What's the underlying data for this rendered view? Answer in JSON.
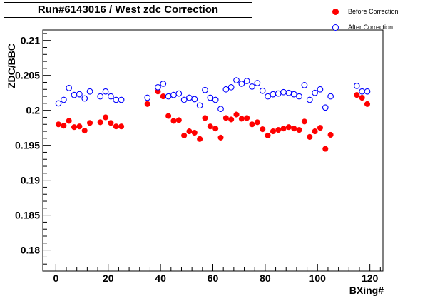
{
  "chart_data": {
    "type": "scatter",
    "title": "Run#6143016 / West zdc Correction",
    "xlabel": "BXing#",
    "ylabel": "ZDC/BBC",
    "xlim": [
      -5,
      125
    ],
    "ylim": [
      0.177,
      0.2115
    ],
    "xticks": [
      0,
      20,
      40,
      60,
      80,
      100,
      120
    ],
    "xtick_labels": [
      "0",
      "20",
      "40",
      "60",
      "80",
      "100",
      "120"
    ],
    "yticks": [
      0.18,
      0.185,
      0.19,
      0.195,
      0.2,
      0.205,
      0.21
    ],
    "ytick_labels": [
      "0.18",
      "0.185",
      "0.19",
      "0.195",
      "0.2",
      "0.205",
      "0.21"
    ],
    "grid": false,
    "legend_position": "top-right",
    "series": [
      {
        "name": "Before Correction",
        "marker": "filled-circle",
        "color": "#ff0000",
        "points": [
          [
            1,
            0.198
          ],
          [
            3,
            0.1978
          ],
          [
            5,
            0.1985
          ],
          [
            7,
            0.1976
          ],
          [
            9,
            0.1977
          ],
          [
            11,
            0.1971
          ],
          [
            13,
            0.1982
          ],
          [
            17,
            0.1983
          ],
          [
            19,
            0.199
          ],
          [
            21,
            0.1982
          ],
          [
            23,
            0.1977
          ],
          [
            25,
            0.1977
          ],
          [
            35,
            0.2009
          ],
          [
            39,
            0.2027
          ],
          [
            41,
            0.202
          ],
          [
            43,
            0.1992
          ],
          [
            45,
            0.1985
          ],
          [
            47,
            0.1986
          ],
          [
            49,
            0.1964
          ],
          [
            51,
            0.197
          ],
          [
            53,
            0.1968
          ],
          [
            55,
            0.1959
          ],
          [
            57,
            0.1989
          ],
          [
            59,
            0.1977
          ],
          [
            61,
            0.1974
          ],
          [
            63,
            0.1961
          ],
          [
            65,
            0.1989
          ],
          [
            67,
            0.1987
          ],
          [
            69,
            0.1994
          ],
          [
            71,
            0.1988
          ],
          [
            73,
            0.1989
          ],
          [
            75,
            0.198
          ],
          [
            77,
            0.1983
          ],
          [
            79,
            0.1973
          ],
          [
            81,
            0.1964
          ],
          [
            83,
            0.197
          ],
          [
            85,
            0.1972
          ],
          [
            87,
            0.1974
          ],
          [
            89,
            0.1976
          ],
          [
            91,
            0.1974
          ],
          [
            93,
            0.1972
          ],
          [
            95,
            0.1984
          ],
          [
            97,
            0.1962
          ],
          [
            99,
            0.197
          ],
          [
            101,
            0.1975
          ],
          [
            103,
            0.1945
          ],
          [
            105,
            0.1965
          ],
          [
            115,
            0.2022
          ],
          [
            117,
            0.2018
          ],
          [
            119,
            0.2009
          ]
        ]
      },
      {
        "name": "After Correction",
        "marker": "open-circle",
        "color": "#0000ff",
        "points": [
          [
            1,
            0.201
          ],
          [
            3,
            0.2015
          ],
          [
            5,
            0.2032
          ],
          [
            7,
            0.2022
          ],
          [
            9,
            0.2023
          ],
          [
            11,
            0.2017
          ],
          [
            13,
            0.2027
          ],
          [
            17,
            0.202
          ],
          [
            19,
            0.2027
          ],
          [
            21,
            0.202
          ],
          [
            23,
            0.2015
          ],
          [
            25,
            0.2015
          ],
          [
            35,
            0.2018
          ],
          [
            39,
            0.2033
          ],
          [
            41,
            0.2038
          ],
          [
            43,
            0.202
          ],
          [
            45,
            0.2022
          ],
          [
            47,
            0.2024
          ],
          [
            49,
            0.2015
          ],
          [
            51,
            0.2018
          ],
          [
            53,
            0.2016
          ],
          [
            55,
            0.2007
          ],
          [
            57,
            0.2029
          ],
          [
            59,
            0.2018
          ],
          [
            61,
            0.2015
          ],
          [
            63,
            0.2002
          ],
          [
            65,
            0.203
          ],
          [
            67,
            0.2033
          ],
          [
            69,
            0.2043
          ],
          [
            71,
            0.2038
          ],
          [
            73,
            0.2042
          ],
          [
            75,
            0.2034
          ],
          [
            77,
            0.2039
          ],
          [
            79,
            0.2028
          ],
          [
            81,
            0.202
          ],
          [
            83,
            0.2023
          ],
          [
            85,
            0.2024
          ],
          [
            87,
            0.2026
          ],
          [
            89,
            0.2025
          ],
          [
            91,
            0.2023
          ],
          [
            93,
            0.202
          ],
          [
            95,
            0.2036
          ],
          [
            97,
            0.2015
          ],
          [
            99,
            0.2025
          ],
          [
            101,
            0.203
          ],
          [
            103,
            0.2004
          ],
          [
            105,
            0.202
          ],
          [
            115,
            0.2035
          ],
          [
            117,
            0.2027
          ],
          [
            119,
            0.2027
          ]
        ]
      }
    ]
  }
}
